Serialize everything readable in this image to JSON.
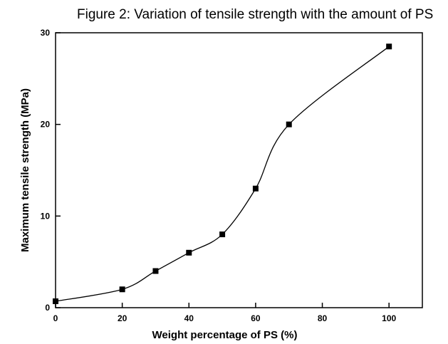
{
  "chart_data": {
    "type": "line",
    "title": "Figure 2: Variation of tensile strength with the amount of PS",
    "xlabel": "Weight percentage of PS (%)",
    "ylabel": "Maximum tensile strength (MPa)",
    "xlim": [
      0,
      110
    ],
    "ylim": [
      0,
      30
    ],
    "xticks": [
      "0",
      "20",
      "40",
      "60",
      "80",
      "100"
    ],
    "yticks": [
      "0",
      "10",
      "20",
      "30"
    ],
    "grid": false,
    "marker": "square",
    "smooth": true,
    "x": [
      0,
      20,
      30,
      40,
      50,
      60,
      70,
      100
    ],
    "y": [
      0.7,
      2,
      4,
      6,
      8,
      13,
      20,
      28.5
    ]
  }
}
